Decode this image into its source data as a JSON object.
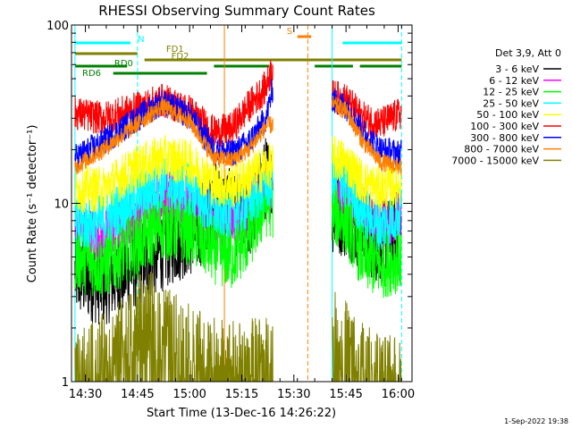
{
  "chart_data": {
    "type": "line",
    "title": "RHESSI Observing Summary Count Rates",
    "xlabel": "Start Time (13-Dec-16 14:26:22)",
    "ylabel": "Count Rate (s⁻¹ detector⁻¹)",
    "yscale": "log",
    "ylim": [
      1,
      100
    ],
    "xlim": [
      "14:26",
      "16:04"
    ],
    "x_ticks": [
      "14:30",
      "14:45",
      "15:00",
      "15:15",
      "15:30",
      "15:45",
      "16:00"
    ],
    "y_ticks": [
      "1",
      "10",
      "100"
    ],
    "legend_title": "Det 3,9, Att 0",
    "legend_position": "right",
    "series": [
      {
        "name": "3 - 6 keV",
        "color": "#000000",
        "points": [
          [
            "14:27",
            4
          ],
          [
            "14:35",
            3.5
          ],
          [
            "14:45",
            4.5
          ],
          [
            "14:55",
            6
          ],
          [
            "15:02",
            7
          ],
          [
            "15:07",
            10
          ],
          [
            "15:12",
            9
          ],
          [
            "15:17",
            8
          ],
          [
            "15:22",
            14
          ],
          [
            "15:41",
            9
          ],
          [
            "15:45",
            8.5
          ],
          [
            "15:50",
            7
          ],
          [
            "15:55",
            6
          ],
          [
            "16:01",
            7
          ]
        ]
      },
      {
        "name": "6 - 12 keV",
        "color": "#ff00ff",
        "points": [
          [
            "14:27",
            7
          ],
          [
            "14:35",
            6.5
          ],
          [
            "14:45",
            9
          ],
          [
            "14:52",
            11
          ],
          [
            "15:00",
            10
          ],
          [
            "15:07",
            8
          ],
          [
            "15:12",
            8
          ],
          [
            "15:17",
            9
          ],
          [
            "15:22",
            13
          ],
          [
            "15:41",
            12
          ],
          [
            "15:45",
            11
          ],
          [
            "15:50",
            9
          ],
          [
            "15:55",
            7.5
          ],
          [
            "16:01",
            8.5
          ]
        ]
      },
      {
        "name": "12 - 25 keV",
        "color": "#00ff00",
        "points": [
          [
            "14:27",
            5
          ],
          [
            "14:35",
            4.5
          ],
          [
            "14:45",
            6
          ],
          [
            "14:52",
            7.5
          ],
          [
            "15:00",
            7
          ],
          [
            "15:07",
            5.5
          ],
          [
            "15:12",
            5
          ],
          [
            "15:17",
            6.5
          ],
          [
            "15:22",
            10
          ],
          [
            "15:41",
            9
          ],
          [
            "15:45",
            8
          ],
          [
            "15:50",
            5
          ],
          [
            "15:55",
            4.5
          ],
          [
            "16:01",
            5
          ]
        ]
      },
      {
        "name": "25 - 50 keV",
        "color": "#00ffff",
        "points": [
          [
            "14:27",
            7.5
          ],
          [
            "14:35",
            8
          ],
          [
            "14:45",
            11
          ],
          [
            "14:52",
            13
          ],
          [
            "15:00",
            12
          ],
          [
            "15:07",
            9
          ],
          [
            "15:12",
            9
          ],
          [
            "15:17",
            10
          ],
          [
            "15:22",
            13
          ],
          [
            "15:41",
            14
          ],
          [
            "15:45",
            13
          ],
          [
            "15:50",
            9
          ],
          [
            "15:55",
            7.5
          ],
          [
            "16:01",
            9
          ]
        ]
      },
      {
        "name": "50 - 100 keV",
        "color": "#ffff00",
        "points": [
          [
            "14:27",
            12
          ],
          [
            "14:35",
            12
          ],
          [
            "14:45",
            16
          ],
          [
            "14:52",
            18
          ],
          [
            "15:00",
            17
          ],
          [
            "15:07",
            13
          ],
          [
            "15:12",
            12.5
          ],
          [
            "15:17",
            14
          ],
          [
            "15:22",
            16
          ],
          [
            "15:41",
            18
          ],
          [
            "15:45",
            17
          ],
          [
            "15:50",
            13
          ],
          [
            "15:55",
            12
          ],
          [
            "16:01",
            13
          ]
        ]
      },
      {
        "name": "100 - 300 keV",
        "color": "#ff0000",
        "points": [
          [
            "14:27",
            32
          ],
          [
            "14:35",
            30
          ],
          [
            "14:45",
            34
          ],
          [
            "14:52",
            38
          ],
          [
            "15:00",
            33
          ],
          [
            "15:07",
            25
          ],
          [
            "15:12",
            26
          ],
          [
            "15:17",
            35
          ],
          [
            "15:22",
            45
          ],
          [
            "15:24",
            60
          ],
          [
            "15:41",
            40
          ],
          [
            "15:45",
            38
          ],
          [
            "15:50",
            30
          ],
          [
            "15:55",
            28
          ],
          [
            "16:01",
            32
          ]
        ]
      },
      {
        "name": "300 - 800 keV",
        "color": "#0000ff",
        "points": [
          [
            "14:27",
            18
          ],
          [
            "14:35",
            22
          ],
          [
            "14:45",
            30
          ],
          [
            "14:52",
            37
          ],
          [
            "15:00",
            31
          ],
          [
            "15:07",
            20
          ],
          [
            "15:12",
            19
          ],
          [
            "15:17",
            22
          ],
          [
            "15:22",
            30
          ],
          [
            "15:24",
            45
          ],
          [
            "15:41",
            38
          ],
          [
            "15:45",
            35
          ],
          [
            "15:50",
            25
          ],
          [
            "15:55",
            20
          ],
          [
            "16:01",
            19
          ]
        ]
      },
      {
        "name": "800 - 7000 keV",
        "color": "#ff7f00",
        "points": [
          [
            "14:27",
            16
          ],
          [
            "14:35",
            20
          ],
          [
            "14:45",
            28
          ],
          [
            "14:52",
            35
          ],
          [
            "15:00",
            29
          ],
          [
            "15:07",
            18
          ],
          [
            "15:12",
            17.5
          ],
          [
            "15:17",
            20
          ],
          [
            "15:22",
            27
          ],
          [
            "15:41",
            36
          ],
          [
            "15:45",
            33
          ],
          [
            "15:50",
            22
          ],
          [
            "15:55",
            17
          ],
          [
            "16:01",
            16
          ]
        ]
      },
      {
        "name": "7000 - 15000 keV",
        "color": "#808000",
        "points": [
          [
            "14:27",
            1
          ],
          [
            "14:40",
            1.6
          ],
          [
            "14:45",
            2.2
          ],
          [
            "14:50",
            2.3
          ],
          [
            "14:55",
            1.8
          ],
          [
            "15:00",
            1.5
          ],
          [
            "15:05",
            1.3
          ],
          [
            "15:10",
            1.3
          ],
          [
            "15:15",
            1.2
          ],
          [
            "15:20",
            1.3
          ],
          [
            "15:41",
            1.8
          ],
          [
            "15:45",
            1.6
          ],
          [
            "15:50",
            1.2
          ],
          [
            "15:55",
            1.0
          ],
          [
            "16:01",
            1.0
          ]
        ]
      }
    ],
    "state_bars": [
      {
        "label": "S",
        "start": "15:31",
        "end": "15:35",
        "color": "#ff7f00"
      },
      {
        "label": "N",
        "start": "14:27",
        "end": "14:43",
        "color": "#00ffff"
      },
      {
        "label": "",
        "start": "15:44",
        "end": "16:01",
        "color": "#00ffff"
      },
      {
        "label": "FD1",
        "start": "14:27",
        "end": "14:45",
        "color": "#808000"
      },
      {
        "label": "FD2",
        "start": "14:47",
        "end": "16:01",
        "color": "#808000"
      },
      {
        "label": "RD0",
        "start": "14:27",
        "end": "14:42",
        "color": "#008000"
      },
      {
        "label": "RD6",
        "start": "14:38",
        "end": "15:05",
        "color": "#008000"
      },
      {
        "label": "",
        "start": "15:07",
        "end": "15:23",
        "color": "#008000"
      },
      {
        "label": "",
        "start": "15:36",
        "end": "15:47",
        "color": "#008000"
      },
      {
        "label": "",
        "start": "15:49",
        "end": "16:01",
        "color": "#008000"
      }
    ],
    "vertical_markers": [
      {
        "time": "14:27",
        "color": "#00ffff",
        "style": "solid"
      },
      {
        "time": "14:45",
        "color": "#00ffff",
        "style": "dashed"
      },
      {
        "time": "15:10",
        "color": "#ff7f00",
        "style": "solid"
      },
      {
        "time": "15:34",
        "color": "#ff7f00",
        "style": "dashed"
      },
      {
        "time": "15:41",
        "color": "#00ffff",
        "style": "solid"
      },
      {
        "time": "16:01",
        "color": "#00ffff",
        "style": "dashed"
      }
    ],
    "gaps": [
      [
        "15:24",
        "15:41"
      ]
    ]
  },
  "footer": {
    "timestamp": "1-Sep-2022 19:38"
  }
}
